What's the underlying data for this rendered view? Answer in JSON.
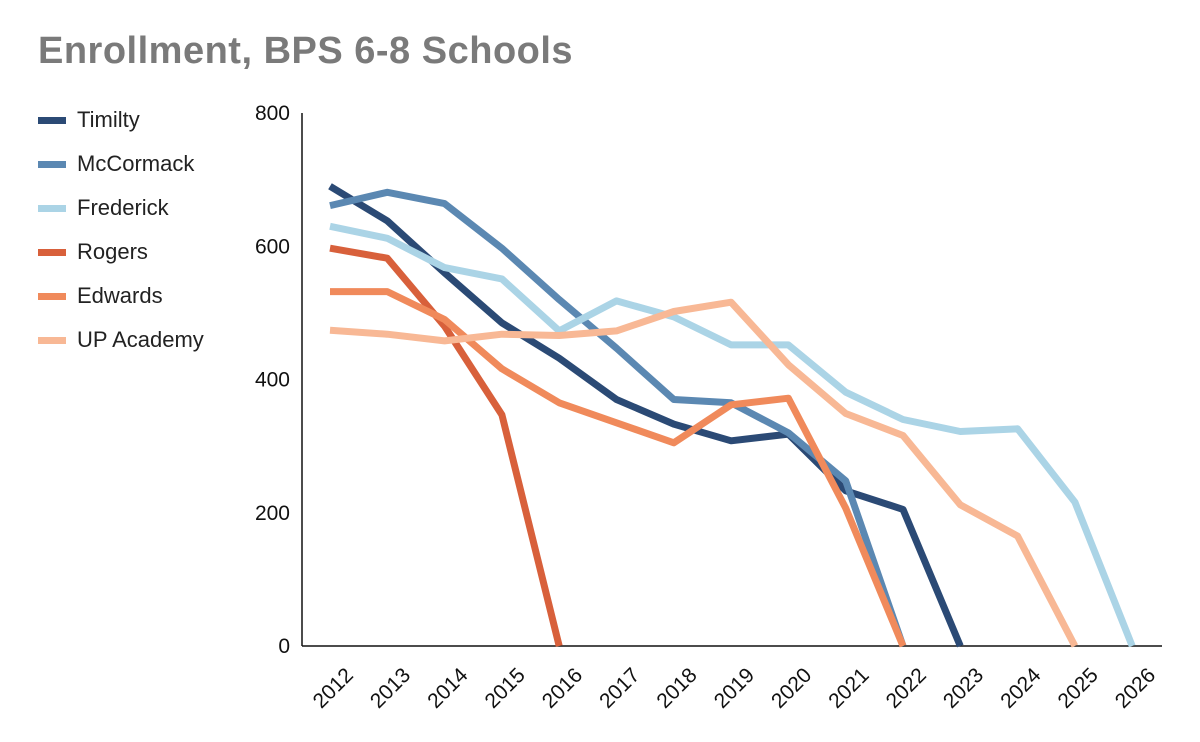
{
  "title": "Enrollment, BPS 6-8 Schools",
  "chart_data": {
    "type": "line",
    "title": "Enrollment, BPS 6-8 Schools",
    "xlabel": "",
    "ylabel": "",
    "x": [
      "2012",
      "2013",
      "2014",
      "2015",
      "2016",
      "2017",
      "2018",
      "2019",
      "2020",
      "2021",
      "2022",
      "2023",
      "2024",
      "2025",
      "2026"
    ],
    "ylim": [
      0,
      800
    ],
    "yticks": [
      0,
      200,
      400,
      600,
      800
    ],
    "grid": false,
    "legend_position": "left",
    "series": [
      {
        "name": "Timilty",
        "color": "#2b4a75",
        "values": [
          690,
          638,
          560,
          485,
          432,
          370,
          333,
          308,
          318,
          233,
          205,
          0,
          null,
          null,
          null
        ]
      },
      {
        "name": "McCormack",
        "color": "#5b88b2",
        "values": [
          661,
          681,
          664,
          597,
          520,
          447,
          370,
          365,
          320,
          248,
          0,
          null,
          null,
          null,
          null
        ]
      },
      {
        "name": "Frederick",
        "color": "#abd4e6",
        "values": [
          630,
          612,
          568,
          551,
          473,
          518,
          494,
          452,
          452,
          381,
          340,
          322,
          326,
          216,
          0
        ]
      },
      {
        "name": "Rogers",
        "color": "#d8603b",
        "values": [
          597,
          582,
          480,
          347,
          0,
          null,
          null,
          null,
          null,
          null,
          null,
          null,
          null,
          null,
          null
        ]
      },
      {
        "name": "Edwards",
        "color": "#f08a5b",
        "values": [
          532,
          532,
          490,
          416,
          365,
          335,
          305,
          362,
          372,
          207,
          0,
          null,
          null,
          null,
          null
        ]
      },
      {
        "name": "UP Academy",
        "color": "#f8b895",
        "values": [
          474,
          468,
          458,
          468,
          466,
          473,
          502,
          516,
          422,
          349,
          316,
          212,
          165,
          0,
          null
        ]
      }
    ]
  }
}
